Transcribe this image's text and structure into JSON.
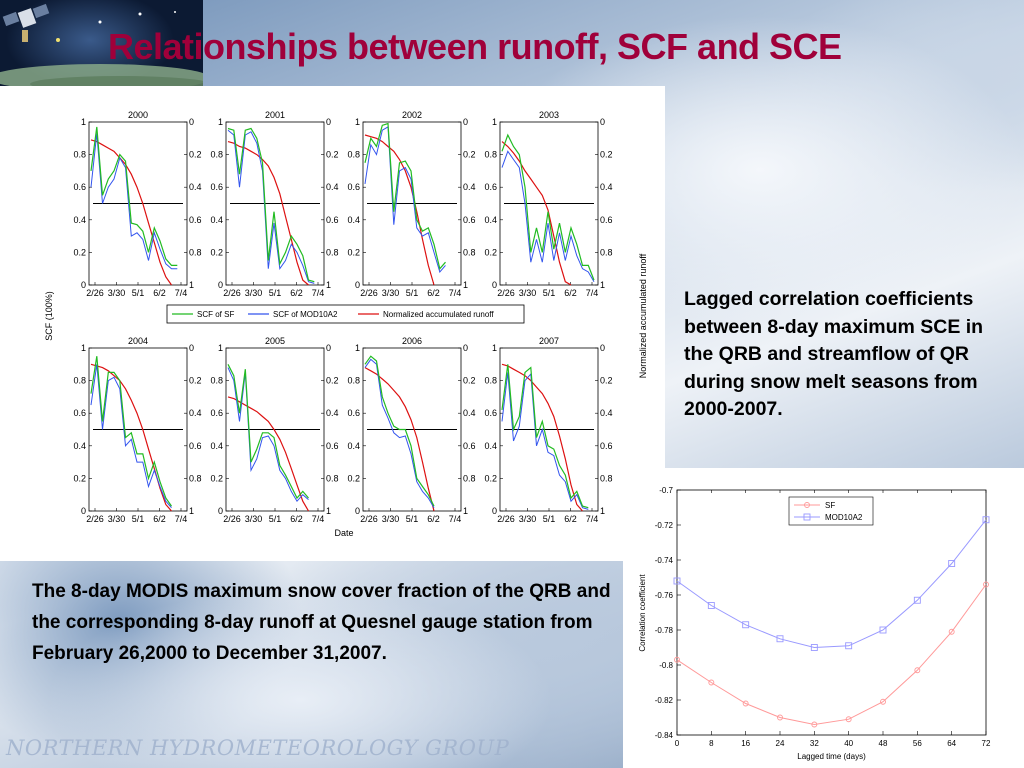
{
  "slide": {
    "title": "Relationships between runoff, SCF and SCE",
    "caption_right": "Lagged correlation coefficients between 8-day maximum SCE in the QRB and streamflow of QR during snow melt seasons from 2000-2007.",
    "caption_left": "The 8-day MODIS maximum snow cover fraction of the QRB and the corresponding 8-day runoff at Quesnel gauge station from February 26,2000 to December 31,2007.",
    "footer": "NORTHERN HYDROMETEOROLOGY GROUP"
  },
  "colors": {
    "title": "#a0003a",
    "scf_sf": "#22bb22",
    "scf_mod": "#3355ee",
    "runoff": "#dd1111",
    "corr_sf": "#ff9999",
    "corr_mod": "#9999ff"
  },
  "icons": [
    "satellite-icon"
  ],
  "chart_data": [
    {
      "type": "line",
      "title": "",
      "xlabel": "Date",
      "ylabel": "SCF (100%)",
      "y2label": "Normalized accumulated runoff",
      "ylim": [
        0,
        1
      ],
      "y2lim": [
        1,
        0
      ],
      "yticks": [
        "0",
        "0.2",
        "0.4",
        "0.6",
        "0.8",
        "1"
      ],
      "y2ticks": [
        "1",
        "0.8",
        "0.6",
        "0.4",
        "0.2",
        "0"
      ],
      "xtick_labels": [
        "2/26",
        "3/30",
        "5/1",
        "6/2",
        "7/4"
      ],
      "legend": [
        "SCF of SF",
        "SCF of MOD10A2",
        "Normalized accumulated runoff"
      ],
      "legend_position": "between-rows",
      "x": [
        0,
        1,
        2,
        3,
        4,
        5,
        6,
        7,
        8,
        9,
        10,
        11,
        12,
        13,
        14,
        15,
        16
      ],
      "panels": [
        {
          "title": "2000",
          "sf": [
            0.7,
            0.97,
            0.55,
            0.65,
            0.7,
            0.8,
            0.76,
            0.38,
            0.37,
            0.33,
            0.2,
            0.35,
            0.27,
            0.16,
            0.12,
            0.12,
            null
          ],
          "mod": [
            0.6,
            0.93,
            0.5,
            0.6,
            0.65,
            0.78,
            0.72,
            0.3,
            0.32,
            0.28,
            0.15,
            0.32,
            0.22,
            0.13,
            0.1,
            0.1,
            null
          ],
          "runoff": [
            0.11,
            0.12,
            0.14,
            0.16,
            0.18,
            0.22,
            0.26,
            0.32,
            0.4,
            0.5,
            0.62,
            0.74,
            0.86,
            0.95,
            1.0,
            null,
            null
          ],
          "level": 0.5
        },
        {
          "title": "2001",
          "sf": [
            0.96,
            0.95,
            0.68,
            0.95,
            0.96,
            0.9,
            0.75,
            0.15,
            0.45,
            0.13,
            0.2,
            0.3,
            0.25,
            0.18,
            0.03,
            0.02,
            null
          ],
          "mod": [
            0.95,
            0.92,
            0.6,
            0.92,
            0.94,
            0.87,
            0.7,
            0.1,
            0.38,
            0.1,
            0.15,
            0.25,
            0.2,
            0.12,
            0.02,
            0.01,
            null
          ],
          "runoff": [
            0.12,
            0.13,
            0.15,
            0.16,
            0.18,
            0.2,
            0.23,
            0.27,
            0.34,
            0.44,
            0.58,
            0.72,
            0.86,
            0.97,
            1.0,
            null,
            null
          ],
          "level": 0.5
        },
        {
          "title": "2002",
          "sf": [
            0.75,
            0.9,
            0.85,
            0.98,
            0.99,
            0.45,
            0.75,
            0.76,
            0.7,
            0.4,
            0.33,
            0.35,
            0.25,
            0.1,
            0.14,
            null,
            null
          ],
          "mod": [
            0.62,
            0.86,
            0.8,
            0.95,
            0.97,
            0.37,
            0.7,
            0.72,
            0.65,
            0.35,
            0.3,
            0.32,
            0.2,
            0.08,
            0.12,
            null,
            null
          ],
          "runoff": [
            0.08,
            0.09,
            0.1,
            0.12,
            0.15,
            0.18,
            0.23,
            0.3,
            0.4,
            0.55,
            0.72,
            0.88,
            1.0,
            null,
            null,
            null,
            null
          ],
          "level": 0.5
        },
        {
          "title": "2003",
          "sf": [
            0.82,
            0.92,
            0.85,
            0.8,
            0.6,
            0.2,
            0.35,
            0.2,
            0.45,
            0.22,
            0.38,
            0.2,
            0.35,
            0.25,
            0.12,
            0.12,
            0.03
          ],
          "mod": [
            0.72,
            0.82,
            0.77,
            0.72,
            0.5,
            0.14,
            0.28,
            0.14,
            0.38,
            0.15,
            0.32,
            0.15,
            0.3,
            0.18,
            0.1,
            0.08,
            0.02
          ],
          "runoff": [
            0.12,
            0.15,
            0.19,
            0.24,
            0.3,
            0.35,
            0.4,
            0.45,
            0.54,
            0.7,
            0.86,
            0.98,
            1.0,
            null,
            null,
            null,
            null
          ],
          "level": 0.5
        },
        {
          "title": "2004",
          "sf": [
            0.72,
            0.95,
            0.55,
            0.85,
            0.85,
            0.8,
            0.45,
            0.48,
            0.35,
            0.35,
            0.2,
            0.3,
            0.18,
            0.08,
            0.03,
            null,
            null
          ],
          "mod": [
            0.65,
            0.9,
            0.5,
            0.8,
            0.82,
            0.75,
            0.4,
            0.44,
            0.3,
            0.3,
            0.15,
            0.25,
            0.15,
            0.06,
            0.02,
            null,
            null
          ],
          "runoff": [
            0.1,
            0.11,
            0.12,
            0.14,
            0.17,
            0.2,
            0.25,
            0.32,
            0.4,
            0.5,
            0.62,
            0.74,
            0.86,
            0.96,
            1.0,
            null,
            null
          ],
          "level": 0.5
        },
        {
          "title": "2005",
          "sf": [
            0.9,
            0.83,
            0.6,
            0.87,
            0.3,
            0.38,
            0.48,
            0.48,
            0.45,
            0.28,
            0.22,
            0.15,
            0.08,
            0.12,
            0.08,
            null,
            null
          ],
          "mod": [
            0.88,
            0.8,
            0.55,
            0.85,
            0.25,
            0.32,
            0.45,
            0.46,
            0.4,
            0.25,
            0.2,
            0.12,
            0.06,
            0.1,
            0.07,
            null,
            null
          ],
          "runoff": [
            0.3,
            0.31,
            0.33,
            0.35,
            0.37,
            0.39,
            0.42,
            0.45,
            0.5,
            0.56,
            0.64,
            0.74,
            0.84,
            0.94,
            1.0,
            null,
            null
          ],
          "level": 0.5
        },
        {
          "title": "2006",
          "sf": [
            0.9,
            0.95,
            0.92,
            0.7,
            0.6,
            0.52,
            0.5,
            0.5,
            0.4,
            0.2,
            0.15,
            0.1,
            0.03,
            null,
            null,
            null,
            null
          ],
          "mod": [
            0.88,
            0.93,
            0.9,
            0.65,
            0.57,
            0.48,
            0.45,
            0.46,
            0.35,
            0.18,
            0.12,
            0.08,
            0.02,
            null,
            null,
            null,
            null
          ],
          "runoff": [
            0.12,
            0.14,
            0.16,
            0.19,
            0.22,
            0.26,
            0.3,
            0.36,
            0.44,
            0.55,
            0.7,
            0.86,
            1.0,
            null,
            null,
            null,
            null
          ],
          "level": 0.5
        },
        {
          "title": "2007",
          "sf": [
            0.62,
            0.9,
            0.5,
            0.58,
            0.85,
            0.88,
            0.45,
            0.55,
            0.4,
            0.38,
            0.28,
            0.22,
            0.08,
            0.12,
            0.03,
            0.02,
            null
          ],
          "mod": [
            0.55,
            0.85,
            0.43,
            0.52,
            0.8,
            0.84,
            0.4,
            0.5,
            0.36,
            0.34,
            0.22,
            0.18,
            0.06,
            0.1,
            0.02,
            0.01,
            null
          ],
          "runoff": [
            0.1,
            0.11,
            0.13,
            0.15,
            0.17,
            0.2,
            0.24,
            0.28,
            0.34,
            0.42,
            0.54,
            0.68,
            0.84,
            0.96,
            1.0,
            null,
            null
          ],
          "level": 0.5
        }
      ]
    },
    {
      "type": "line",
      "title": "",
      "xlabel": "Lagged time (days)",
      "ylabel": "Correlation coefficient",
      "x": [
        0,
        8,
        16,
        24,
        32,
        40,
        48,
        56,
        64,
        72
      ],
      "xticks": [
        "0",
        "8",
        "16",
        "24",
        "32",
        "40",
        "48",
        "56",
        "64",
        "72"
      ],
      "ylim": [
        -0.84,
        -0.7
      ],
      "yticks": [
        "-0.84",
        "-0.82",
        "-0.8",
        "-0.78",
        "-0.76",
        "-0.74",
        "-0.72",
        "-0.7"
      ],
      "legend_position": "top-center",
      "series": [
        {
          "name": "SF",
          "values": [
            -0.797,
            -0.81,
            -0.822,
            -0.83,
            -0.834,
            -0.831,
            -0.821,
            -0.803,
            -0.781,
            -0.754
          ]
        },
        {
          "name": "MOD10A2",
          "values": [
            -0.752,
            -0.766,
            -0.777,
            -0.785,
            -0.79,
            -0.789,
            -0.78,
            -0.763,
            -0.742,
            -0.717
          ]
        }
      ]
    }
  ]
}
